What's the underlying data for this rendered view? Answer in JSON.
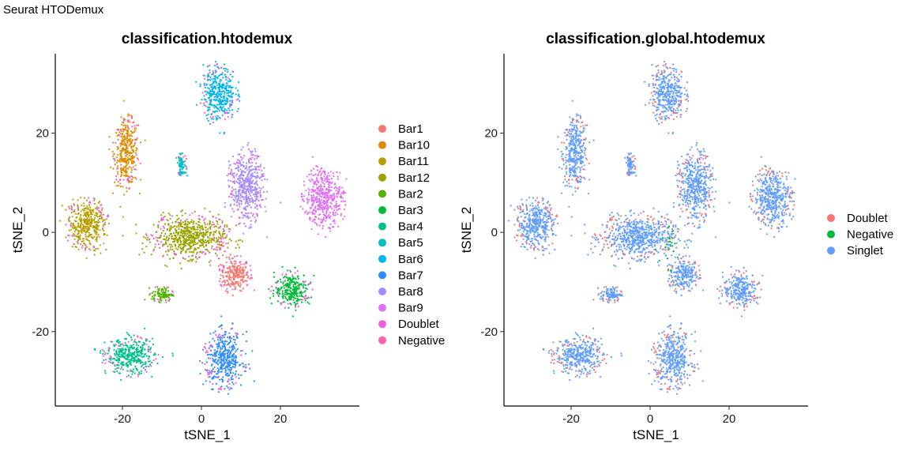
{
  "figure_title": "Seurat HTODemux",
  "chart_data": [
    {
      "type": "scatter",
      "title": "classification.htodemux",
      "xlabel": "tSNE_1",
      "ylabel": "tSNE_2",
      "xticks": [
        -20,
        0,
        20
      ],
      "yticks": [
        -20,
        0,
        20
      ],
      "xlim": [
        -37,
        40
      ],
      "ylim": [
        -35,
        36
      ],
      "grid": false,
      "legend_position": "right",
      "legend": [
        {
          "name": "Bar1",
          "color": "#F8766D"
        },
        {
          "name": "Bar10",
          "color": "#DE8C00"
        },
        {
          "name": "Bar11",
          "color": "#B79F00"
        },
        {
          "name": "Bar12",
          "color": "#7CAE00"
        },
        {
          "name": "Bar2",
          "color": "#00BA38"
        },
        {
          "name": "Bar3",
          "color": "#00C08B"
        },
        {
          "name": "Bar4",
          "color": "#00BFC4"
        },
        {
          "name": "Bar5",
          "color": "#00B4F0"
        },
        {
          "name": "Bar6",
          "color": "#619CFF"
        },
        {
          "name": "Bar7",
          "color": "#C77CFF"
        },
        {
          "name": "Bar8",
          "color": "#F564E3"
        },
        {
          "name": "Bar9",
          "color": "#FF64B0"
        },
        {
          "name": "Doublet",
          "color": "#F564E3"
        },
        {
          "name": "Negative",
          "color": "#FF64B0"
        }
      ],
      "legend_colors_observed": [
        "#F8766D",
        "#DE8C00",
        "#B79F00",
        "#9AA300",
        "#53B400",
        "#00BA38",
        "#00C08B",
        "#00BFC4",
        "#00B4F0",
        "#2F8BFF",
        "#A58AFF",
        "#DF70F8",
        "#F15CE0",
        "#FF5FAE"
      ],
      "clusters": [
        {
          "label": "Bar1",
          "x": 8.5,
          "y": -8.5,
          "sx": 1.8,
          "sy": 1.6
        },
        {
          "label": "Bar10",
          "x": -19,
          "y": 16,
          "sx": 1.5,
          "sy": 3.2
        },
        {
          "label": "Bar11",
          "x": -29,
          "y": 1.5,
          "sx": 2.4,
          "sy": 2.3
        },
        {
          "label": "Bar12",
          "x": -3,
          "y": -1,
          "sx": 4.5,
          "sy": 2.0
        },
        {
          "label": "Bar2",
          "x": -10,
          "y": -12.5,
          "sx": 1.3,
          "sy": 0.7
        },
        {
          "label": "Bar3",
          "x": 23,
          "y": -11.5,
          "sx": 2.2,
          "sy": 1.6
        },
        {
          "label": "Bar4",
          "x": -18,
          "y": -25,
          "sx": 3.0,
          "sy": 1.7
        },
        {
          "label": "Bar5",
          "x": -5,
          "y": 13.5,
          "sx": 0.6,
          "sy": 1.0
        },
        {
          "label": "Bar6",
          "x": 4.5,
          "y": 28,
          "sx": 2.0,
          "sy": 2.6
        },
        {
          "label": "Bar7",
          "x": 6,
          "y": -25.5,
          "sx": 2.3,
          "sy": 2.6
        },
        {
          "label": "Bar8",
          "x": 11.5,
          "y": 9,
          "sx": 2.0,
          "sy": 3.3
        },
        {
          "label": "Bar9",
          "x": 31,
          "y": 7,
          "sx": 2.3,
          "sy": 2.7
        }
      ]
    },
    {
      "type": "scatter",
      "title": "classification.global.htodemux",
      "xlabel": "tSNE_1",
      "ylabel": "tSNE_2",
      "xticks": [
        -20,
        0,
        20
      ],
      "yticks": [
        -20,
        0,
        20
      ],
      "xlim": [
        -37,
        40
      ],
      "ylim": [
        -35,
        36
      ],
      "grid": false,
      "legend_position": "right",
      "legend": [
        {
          "name": "Doublet",
          "color": "#F8766D"
        },
        {
          "name": "Negative",
          "color": "#00BA38"
        },
        {
          "name": "Singlet",
          "color": "#619CFF"
        }
      ]
    }
  ]
}
